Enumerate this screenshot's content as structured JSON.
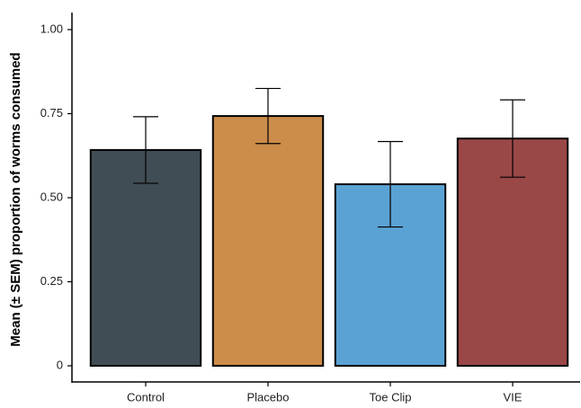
{
  "chart_data": {
    "type": "bar",
    "y_label": "Mean (± SEM) proportion of worms consumed",
    "categories": [
      "Control",
      "Placebo",
      "Toe Clip",
      "VIE"
    ],
    "values": [
      0.642,
      0.743,
      0.54,
      0.676
    ],
    "errors": [
      0.099,
      0.082,
      0.127,
      0.115
    ],
    "colors": [
      "#414d54",
      "#cc8c4a",
      "#5ba2d4",
      "#9a4747"
    ],
    "ylim": [
      -0.048,
      1.048
    ],
    "yticks": [
      0,
      0.25,
      {
        "value": 0.5,
        "label": "0.50"
      },
      {
        "value": 0.75,
        "label": "0.75"
      },
      {
        "value": 1,
        "label": "1.00"
      }
    ],
    "grid": false
  }
}
